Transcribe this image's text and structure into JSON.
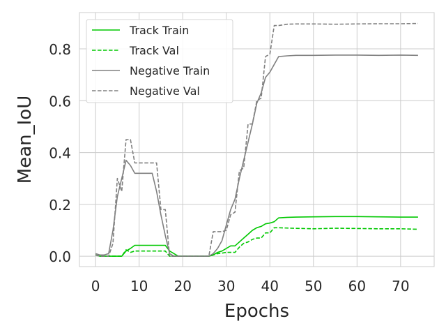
{
  "chart_data": {
    "type": "line",
    "title": "",
    "xlabel": "Epochs",
    "ylabel": "Mean_IoU",
    "xlim": [
      -3.7,
      77.7
    ],
    "ylim": [
      -0.04,
      0.94
    ],
    "xticks": [
      0,
      10,
      20,
      30,
      40,
      50,
      60,
      70
    ],
    "yticks": [
      0.0,
      0.2,
      0.4,
      0.6,
      0.8
    ],
    "ytick_labels": [
      "0.0",
      "0.2",
      "0.4",
      "0.6",
      "0.8"
    ],
    "grid": true,
    "legend_position": "top-left",
    "series": [
      {
        "name": "Track Train",
        "color": "#00c800",
        "dash": "solid",
        "points": [
          [
            0,
            0.005
          ],
          [
            1,
            0.0
          ],
          [
            2,
            0.0
          ],
          [
            3,
            0.0
          ],
          [
            4,
            0.0
          ],
          [
            5,
            0.0
          ],
          [
            6,
            0.0
          ],
          [
            7,
            0.02
          ],
          [
            8,
            0.03
          ],
          [
            9,
            0.042
          ],
          [
            10,
            0.042
          ],
          [
            11,
            0.042
          ],
          [
            12,
            0.042
          ],
          [
            13,
            0.042
          ],
          [
            14,
            0.042
          ],
          [
            15,
            0.042
          ],
          [
            16,
            0.042
          ],
          [
            17,
            0.02
          ],
          [
            18,
            0.01
          ],
          [
            19,
            0.0
          ],
          [
            20,
            0.0
          ],
          [
            21,
            0.0
          ],
          [
            22,
            0.0
          ],
          [
            23,
            0.0
          ],
          [
            24,
            0.0
          ],
          [
            25,
            0.0
          ],
          [
            26,
            0.0
          ],
          [
            27,
            0.005
          ],
          [
            28,
            0.015
          ],
          [
            29,
            0.02
          ],
          [
            30,
            0.03
          ],
          [
            31,
            0.04
          ],
          [
            32,
            0.04
          ],
          [
            33,
            0.055
          ],
          [
            34,
            0.07
          ],
          [
            35,
            0.085
          ],
          [
            36,
            0.1
          ],
          [
            37,
            0.11
          ],
          [
            38,
            0.115
          ],
          [
            39,
            0.125
          ],
          [
            40,
            0.128
          ],
          [
            41,
            0.133
          ],
          [
            42,
            0.148
          ],
          [
            43,
            0.149
          ],
          [
            44,
            0.15
          ],
          [
            46,
            0.151
          ],
          [
            50,
            0.152
          ],
          [
            55,
            0.153
          ],
          [
            60,
            0.153
          ],
          [
            65,
            0.152
          ],
          [
            70,
            0.151
          ],
          [
            74,
            0.151
          ]
        ]
      },
      {
        "name": "Track Val",
        "color": "#00c800",
        "dash": "dashed",
        "points": [
          [
            0,
            0.005
          ],
          [
            1,
            0.0
          ],
          [
            2,
            0.0
          ],
          [
            3,
            0.0
          ],
          [
            4,
            0.0
          ],
          [
            5,
            0.0
          ],
          [
            6,
            0.0
          ],
          [
            7,
            0.025
          ],
          [
            8,
            0.015
          ],
          [
            9,
            0.02
          ],
          [
            10,
            0.02
          ],
          [
            11,
            0.02
          ],
          [
            12,
            0.02
          ],
          [
            13,
            0.02
          ],
          [
            14,
            0.02
          ],
          [
            15,
            0.02
          ],
          [
            16,
            0.02
          ],
          [
            17,
            0.0
          ],
          [
            18,
            0.0
          ],
          [
            20,
            0.0
          ],
          [
            22,
            0.0
          ],
          [
            24,
            0.0
          ],
          [
            26,
            0.0
          ],
          [
            27,
            0.005
          ],
          [
            28,
            0.01
          ],
          [
            29,
            0.012
          ],
          [
            30,
            0.015
          ],
          [
            31,
            0.015
          ],
          [
            32,
            0.015
          ],
          [
            33,
            0.035
          ],
          [
            34,
            0.05
          ],
          [
            35,
            0.055
          ],
          [
            36,
            0.065
          ],
          [
            37,
            0.07
          ],
          [
            38,
            0.07
          ],
          [
            39,
            0.09
          ],
          [
            40,
            0.09
          ],
          [
            41,
            0.11
          ],
          [
            42,
            0.11
          ],
          [
            45,
            0.108
          ],
          [
            50,
            0.106
          ],
          [
            55,
            0.108
          ],
          [
            60,
            0.107
          ],
          [
            65,
            0.106
          ],
          [
            70,
            0.106
          ],
          [
            74,
            0.104
          ]
        ]
      },
      {
        "name": "Negative Train",
        "color": "#808080",
        "dash": "solid",
        "points": [
          [
            0,
            0.01
          ],
          [
            1,
            0.005
          ],
          [
            2,
            0.005
          ],
          [
            3,
            0.01
          ],
          [
            4,
            0.1
          ],
          [
            5,
            0.23
          ],
          [
            6,
            0.3
          ],
          [
            7,
            0.37
          ],
          [
            8,
            0.35
          ],
          [
            9,
            0.32
          ],
          [
            10,
            0.32
          ],
          [
            11,
            0.32
          ],
          [
            12,
            0.32
          ],
          [
            13,
            0.32
          ],
          [
            14,
            0.25
          ],
          [
            15,
            0.16
          ],
          [
            16,
            0.08
          ],
          [
            17,
            0.01
          ],
          [
            18,
            0.0
          ],
          [
            20,
            0.0
          ],
          [
            22,
            0.0
          ],
          [
            24,
            0.0
          ],
          [
            26,
            0.0
          ],
          [
            27,
            0.01
          ],
          [
            28,
            0.03
          ],
          [
            29,
            0.06
          ],
          [
            30,
            0.12
          ],
          [
            31,
            0.18
          ],
          [
            32,
            0.22
          ],
          [
            33,
            0.3
          ],
          [
            34,
            0.37
          ],
          [
            35,
            0.44
          ],
          [
            36,
            0.51
          ],
          [
            37,
            0.59
          ],
          [
            38,
            0.63
          ],
          [
            39,
            0.69
          ],
          [
            40,
            0.71
          ],
          [
            41,
            0.74
          ],
          [
            42,
            0.77
          ],
          [
            44,
            0.773
          ],
          [
            46,
            0.775
          ],
          [
            50,
            0.775
          ],
          [
            55,
            0.776
          ],
          [
            60,
            0.776
          ],
          [
            65,
            0.775
          ],
          [
            70,
            0.776
          ],
          [
            74,
            0.775
          ]
        ]
      },
      {
        "name": "Negative Val",
        "color": "#808080",
        "dash": "dashed",
        "points": [
          [
            0,
            0.005
          ],
          [
            1,
            0.0
          ],
          [
            2,
            0.0
          ],
          [
            3,
            0.0
          ],
          [
            4,
            0.05
          ],
          [
            5,
            0.3
          ],
          [
            6,
            0.25
          ],
          [
            7,
            0.45
          ],
          [
            8,
            0.45
          ],
          [
            9,
            0.36
          ],
          [
            10,
            0.36
          ],
          [
            11,
            0.36
          ],
          [
            12,
            0.36
          ],
          [
            13,
            0.36
          ],
          [
            14,
            0.36
          ],
          [
            15,
            0.18
          ],
          [
            16,
            0.18
          ],
          [
            17,
            0.0
          ],
          [
            18,
            0.0
          ],
          [
            20,
            0.0
          ],
          [
            22,
            0.0
          ],
          [
            24,
            0.0
          ],
          [
            26,
            0.0
          ],
          [
            27,
            0.095
          ],
          [
            28,
            0.095
          ],
          [
            29,
            0.095
          ],
          [
            30,
            0.1
          ],
          [
            31,
            0.16
          ],
          [
            32,
            0.17
          ],
          [
            33,
            0.33
          ],
          [
            34,
            0.34
          ],
          [
            35,
            0.51
          ],
          [
            36,
            0.51
          ],
          [
            37,
            0.6
          ],
          [
            38,
            0.61
          ],
          [
            39,
            0.77
          ],
          [
            40,
            0.78
          ],
          [
            41,
            0.89
          ],
          [
            42,
            0.89
          ],
          [
            44,
            0.895
          ],
          [
            46,
            0.896
          ],
          [
            50,
            0.896
          ],
          [
            55,
            0.895
          ],
          [
            60,
            0.896
          ],
          [
            65,
            0.897
          ],
          [
            70,
            0.897
          ],
          [
            74,
            0.898
          ]
        ]
      }
    ]
  }
}
